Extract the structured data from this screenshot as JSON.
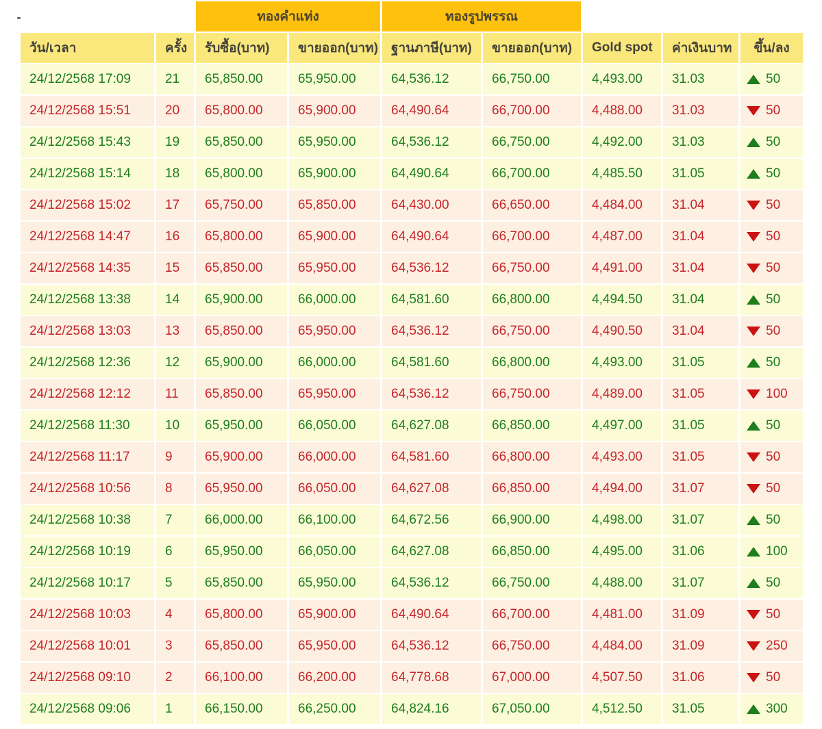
{
  "table": {
    "band_headers": [
      "ทองคำแท่ง",
      "ทองรูปพรรณ"
    ],
    "columns": [
      "วัน/เวลา",
      "ครั้ง",
      "รับซื้อ(บาท)",
      "ขายออก(บาท)",
      "ฐานภาษี(บาท)",
      "ขายออก(บาท)",
      "Gold spot",
      "ค่าเงินบาท",
      "ขึ้น/ลง"
    ],
    "rows": [
      {
        "datetime": "24/12/2568 17:09",
        "no": "21",
        "bar_buy": "65,850.00",
        "bar_sell": "65,950.00",
        "orn_taxbase": "64,536.12",
        "orn_sell": "66,750.00",
        "gold_spot": "4,493.00",
        "baht": "31.03",
        "direction": "up",
        "change": "50",
        "trend": "up"
      },
      {
        "datetime": "24/12/2568 15:51",
        "no": "20",
        "bar_buy": "65,800.00",
        "bar_sell": "65,900.00",
        "orn_taxbase": "64,490.64",
        "orn_sell": "66,700.00",
        "gold_spot": "4,488.00",
        "baht": "31.03",
        "direction": "down",
        "change": "50",
        "trend": "down"
      },
      {
        "datetime": "24/12/2568 15:43",
        "no": "19",
        "bar_buy": "65,850.00",
        "bar_sell": "65,950.00",
        "orn_taxbase": "64,536.12",
        "orn_sell": "66,750.00",
        "gold_spot": "4,492.00",
        "baht": "31.03",
        "direction": "up",
        "change": "50",
        "trend": "up"
      },
      {
        "datetime": "24/12/2568 15:14",
        "no": "18",
        "bar_buy": "65,800.00",
        "bar_sell": "65,900.00",
        "orn_taxbase": "64,490.64",
        "orn_sell": "66,700.00",
        "gold_spot": "4,485.50",
        "baht": "31.05",
        "direction": "up",
        "change": "50",
        "trend": "up"
      },
      {
        "datetime": "24/12/2568 15:02",
        "no": "17",
        "bar_buy": "65,750.00",
        "bar_sell": "65,850.00",
        "orn_taxbase": "64,430.00",
        "orn_sell": "66,650.00",
        "gold_spot": "4,484.00",
        "baht": "31.04",
        "direction": "down",
        "change": "50",
        "trend": "down"
      },
      {
        "datetime": "24/12/2568 14:47",
        "no": "16",
        "bar_buy": "65,800.00",
        "bar_sell": "65,900.00",
        "orn_taxbase": "64,490.64",
        "orn_sell": "66,700.00",
        "gold_spot": "4,487.00",
        "baht": "31.04",
        "direction": "down",
        "change": "50",
        "trend": "down"
      },
      {
        "datetime": "24/12/2568 14:35",
        "no": "15",
        "bar_buy": "65,850.00",
        "bar_sell": "65,950.00",
        "orn_taxbase": "64,536.12",
        "orn_sell": "66,750.00",
        "gold_spot": "4,491.00",
        "baht": "31.04",
        "direction": "down",
        "change": "50",
        "trend": "down"
      },
      {
        "datetime": "24/12/2568 13:38",
        "no": "14",
        "bar_buy": "65,900.00",
        "bar_sell": "66,000.00",
        "orn_taxbase": "64,581.60",
        "orn_sell": "66,800.00",
        "gold_spot": "4,494.50",
        "baht": "31.04",
        "direction": "up",
        "change": "50",
        "trend": "up"
      },
      {
        "datetime": "24/12/2568 13:03",
        "no": "13",
        "bar_buy": "65,850.00",
        "bar_sell": "65,950.00",
        "orn_taxbase": "64,536.12",
        "orn_sell": "66,750.00",
        "gold_spot": "4,490.50",
        "baht": "31.04",
        "direction": "down",
        "change": "50",
        "trend": "down"
      },
      {
        "datetime": "24/12/2568 12:36",
        "no": "12",
        "bar_buy": "65,900.00",
        "bar_sell": "66,000.00",
        "orn_taxbase": "64,581.60",
        "orn_sell": "66,800.00",
        "gold_spot": "4,493.00",
        "baht": "31.05",
        "direction": "up",
        "change": "50",
        "trend": "up"
      },
      {
        "datetime": "24/12/2568 12:12",
        "no": "11",
        "bar_buy": "65,850.00",
        "bar_sell": "65,950.00",
        "orn_taxbase": "64,536.12",
        "orn_sell": "66,750.00",
        "gold_spot": "4,489.00",
        "baht": "31.05",
        "direction": "down",
        "change": "100",
        "trend": "down"
      },
      {
        "datetime": "24/12/2568 11:30",
        "no": "10",
        "bar_buy": "65,950.00",
        "bar_sell": "66,050.00",
        "orn_taxbase": "64,627.08",
        "orn_sell": "66,850.00",
        "gold_spot": "4,497.00",
        "baht": "31.05",
        "direction": "up",
        "change": "50",
        "trend": "up"
      },
      {
        "datetime": "24/12/2568 11:17",
        "no": "9",
        "bar_buy": "65,900.00",
        "bar_sell": "66,000.00",
        "orn_taxbase": "64,581.60",
        "orn_sell": "66,800.00",
        "gold_spot": "4,493.00",
        "baht": "31.05",
        "direction": "down",
        "change": "50",
        "trend": "down"
      },
      {
        "datetime": "24/12/2568 10:56",
        "no": "8",
        "bar_buy": "65,950.00",
        "bar_sell": "66,050.00",
        "orn_taxbase": "64,627.08",
        "orn_sell": "66,850.00",
        "gold_spot": "4,494.00",
        "baht": "31.07",
        "direction": "down",
        "change": "50",
        "trend": "down"
      },
      {
        "datetime": "24/12/2568 10:38",
        "no": "7",
        "bar_buy": "66,000.00",
        "bar_sell": "66,100.00",
        "orn_taxbase": "64,672.56",
        "orn_sell": "66,900.00",
        "gold_spot": "4,498.00",
        "baht": "31.07",
        "direction": "up",
        "change": "50",
        "trend": "up"
      },
      {
        "datetime": "24/12/2568 10:19",
        "no": "6",
        "bar_buy": "65,950.00",
        "bar_sell": "66,050.00",
        "orn_taxbase": "64,627.08",
        "orn_sell": "66,850.00",
        "gold_spot": "4,495.00",
        "baht": "31.06",
        "direction": "up",
        "change": "100",
        "trend": "up"
      },
      {
        "datetime": "24/12/2568 10:17",
        "no": "5",
        "bar_buy": "65,850.00",
        "bar_sell": "65,950.00",
        "orn_taxbase": "64,536.12",
        "orn_sell": "66,750.00",
        "gold_spot": "4,488.00",
        "baht": "31.07",
        "direction": "up",
        "change": "50",
        "trend": "up"
      },
      {
        "datetime": "24/12/2568 10:03",
        "no": "4",
        "bar_buy": "65,800.00",
        "bar_sell": "65,900.00",
        "orn_taxbase": "64,490.64",
        "orn_sell": "66,700.00",
        "gold_spot": "4,481.00",
        "baht": "31.09",
        "direction": "down",
        "change": "50",
        "trend": "down"
      },
      {
        "datetime": "24/12/2568 10:01",
        "no": "3",
        "bar_buy": "65,850.00",
        "bar_sell": "65,950.00",
        "orn_taxbase": "64,536.12",
        "orn_sell": "66,750.00",
        "gold_spot": "4,484.00",
        "baht": "31.09",
        "direction": "down",
        "change": "250",
        "trend": "down"
      },
      {
        "datetime": "24/12/2568 09:10",
        "no": "2",
        "bar_buy": "66,100.00",
        "bar_sell": "66,200.00",
        "orn_taxbase": "64,778.68",
        "orn_sell": "67,000.00",
        "gold_spot": "4,507.50",
        "baht": "31.06",
        "direction": "down",
        "change": "50",
        "trend": "down"
      },
      {
        "datetime": "24/12/2568 09:06",
        "no": "1",
        "bar_buy": "66,150.00",
        "bar_sell": "66,250.00",
        "orn_taxbase": "64,824.16",
        "orn_sell": "67,050.00",
        "gold_spot": "4,512.50",
        "baht": "31.05",
        "direction": "up",
        "change": "300",
        "trend": "up"
      }
    ]
  },
  "colors": {
    "band_orange": "#fec10e",
    "header_yellow": "#fae87d",
    "row_up_bg": "#fbfbd6",
    "row_down_bg": "#fdf0e2",
    "up_text": "#1e7e1e",
    "down_text": "#c5262c"
  }
}
